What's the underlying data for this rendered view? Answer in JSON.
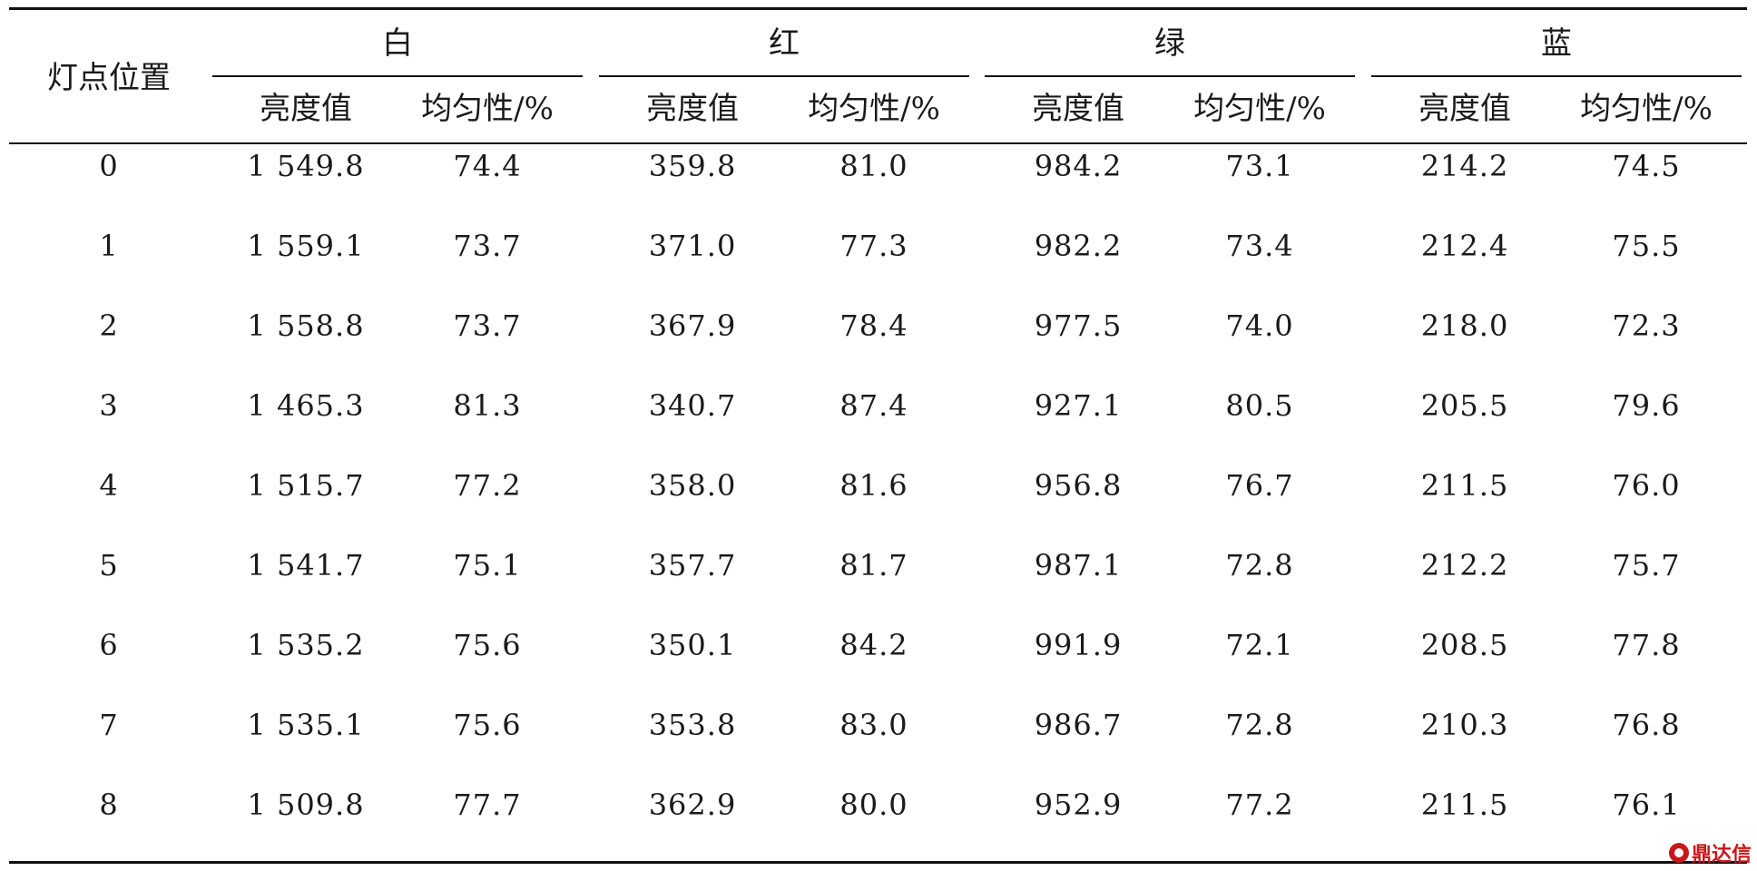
{
  "table": {
    "row_header": "灯点位置",
    "groups": [
      "白",
      "红",
      "绿",
      "蓝"
    ],
    "sub_headers": [
      "亮度值",
      "均匀性/%"
    ],
    "rows": [
      [
        "0",
        "1 549.8",
        "74.4",
        "359.8",
        "81.0",
        "984.2",
        "73.1",
        "214.2",
        "74.5"
      ],
      [
        "1",
        "1 559.1",
        "73.7",
        "371.0",
        "77.3",
        "982.2",
        "73.4",
        "212.4",
        "75.5"
      ],
      [
        "2",
        "1 558.8",
        "73.7",
        "367.9",
        "78.4",
        "977.5",
        "74.0",
        "218.0",
        "72.3"
      ],
      [
        "3",
        "1 465.3",
        "81.3",
        "340.7",
        "87.4",
        "927.1",
        "80.5",
        "205.5",
        "79.6"
      ],
      [
        "4",
        "1 515.7",
        "77.2",
        "358.0",
        "81.6",
        "956.8",
        "76.7",
        "211.5",
        "76.0"
      ],
      [
        "5",
        "1 541.7",
        "75.1",
        "357.7",
        "81.7",
        "987.1",
        "72.8",
        "212.2",
        "75.7"
      ],
      [
        "6",
        "1 535.2",
        "75.6",
        "350.1",
        "84.2",
        "991.9",
        "72.1",
        "208.5",
        "77.8"
      ],
      [
        "7",
        "1 535.1",
        "75.6",
        "353.8",
        "83.0",
        "986.7",
        "72.8",
        "210.3",
        "76.8"
      ],
      [
        "8",
        "1 509.8",
        "77.7",
        "362.9",
        "80.0",
        "952.9",
        "77.2",
        "211.5",
        "76.1"
      ]
    ]
  },
  "watermark": {
    "text": "鼎达信",
    "color": "#c8171d",
    "icon": "logo-circle-icon"
  }
}
